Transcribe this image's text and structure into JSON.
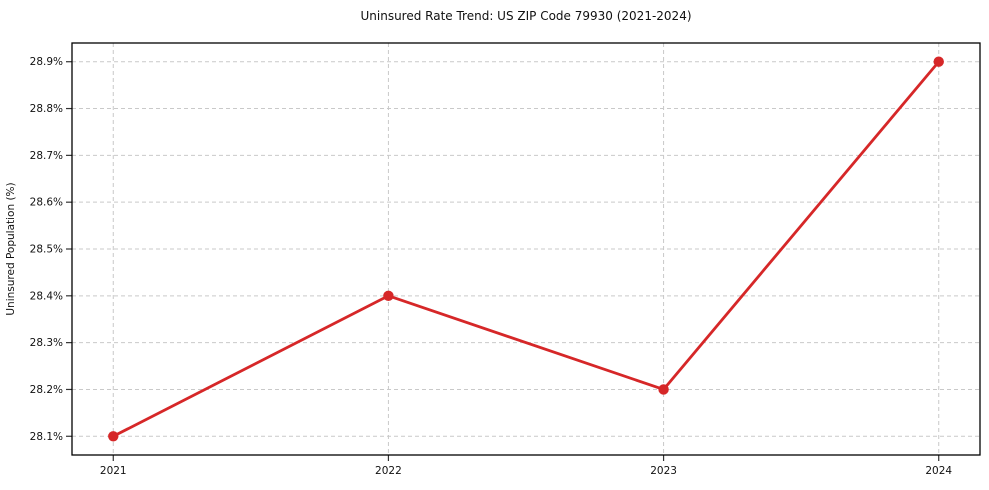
{
  "chart_data": {
    "type": "line",
    "title": "Uninsured Rate Trend: US ZIP Code 79930 (2021-2024)",
    "xlabel": "",
    "ylabel": "Uninsured Population (%)",
    "x": [
      2021,
      2022,
      2023,
      2024
    ],
    "x_tick_labels": [
      "2021",
      "2022",
      "2023",
      "2024"
    ],
    "series": [
      {
        "name": "Uninsured Population (%)",
        "values": [
          28.1,
          28.4,
          28.2,
          28.9
        ]
      }
    ],
    "y_ticks": [
      28.1,
      28.2,
      28.3,
      28.4,
      28.5,
      28.6,
      28.7,
      28.8,
      28.9
    ],
    "y_tick_labels": [
      "28.1%",
      "28.2%",
      "28.3%",
      "28.4%",
      "28.5%",
      "28.6%",
      "28.7%",
      "28.8%",
      "28.9%"
    ],
    "xlim": [
      2020.85,
      2024.15
    ],
    "ylim": [
      28.06,
      28.94
    ],
    "grid": true,
    "grid_style": "dashed",
    "legend_position": "none",
    "colors": {
      "line": "#d62728",
      "marker": "#d62728",
      "grid": "#c9c9c9",
      "spine": "#000000",
      "tick": "#333333",
      "text": "#111111",
      "background": "#ffffff"
    },
    "marker_shape": "circle"
  }
}
